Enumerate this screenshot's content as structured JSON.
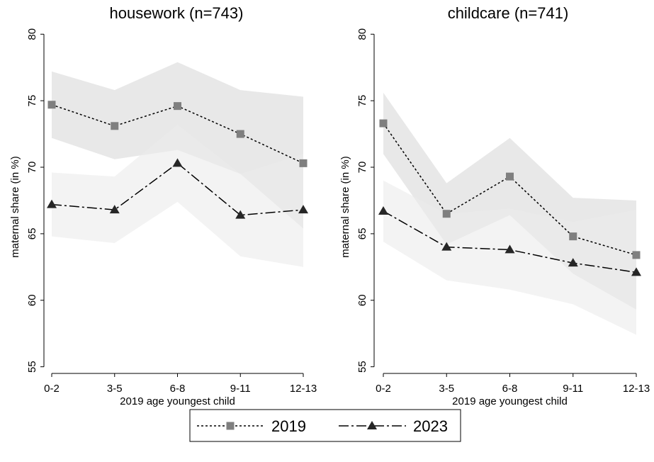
{
  "chart_data": [
    {
      "type": "line",
      "title": "housework (n=743)",
      "xlabel": "2019 age youngest child",
      "ylabel": "maternal share (in %)",
      "categories": [
        "0-2",
        "3-5",
        "6-8",
        "9-11",
        "12-13"
      ],
      "ylim": [
        54.5,
        80.6
      ],
      "yticks": [
        55,
        60,
        65,
        70,
        75,
        80
      ],
      "series": [
        {
          "name": "2019",
          "color": "#7f7f7f",
          "line_color": "#000000",
          "line_style": "dotted",
          "marker": "square",
          "band_color": "#d9d9d9",
          "values": [
            74.7,
            73.1,
            74.6,
            72.5,
            70.3
          ],
          "ci_upper": [
            77.2,
            75.8,
            77.9,
            75.8,
            75.3
          ],
          "ci_lower": [
            72.2,
            70.6,
            71.3,
            69.5,
            65.4
          ]
        },
        {
          "name": "2023",
          "color": "#262626",
          "line_color": "#000000",
          "line_style": "dashdot",
          "marker": "triangle",
          "band_color": "#ebebeb",
          "values": [
            67.2,
            66.8,
            70.3,
            66.4,
            66.8
          ],
          "ci_upper": [
            69.6,
            69.3,
            73.2,
            69.5,
            71.0
          ],
          "ci_lower": [
            64.8,
            64.3,
            67.4,
            63.3,
            62.5
          ]
        }
      ]
    },
    {
      "type": "line",
      "title": "childcare (n=741)",
      "xlabel": "2019 age youngest child",
      "ylabel": "maternal share (in %)",
      "categories": [
        "0-2",
        "3-5",
        "6-8",
        "9-11",
        "12-13"
      ],
      "ylim": [
        54.5,
        80.6
      ],
      "yticks": [
        55,
        60,
        65,
        70,
        75,
        80
      ],
      "series": [
        {
          "color": "#7f7f7f",
          "line_color": "#000000",
          "line_style": "dotted",
          "marker": "square",
          "band_color": "#d9d9d9",
          "values": [
            73.3,
            66.5,
            69.3,
            64.8,
            63.4
          ],
          "ci_upper": [
            75.6,
            68.8,
            72.2,
            67.7,
            67.5
          ],
          "ci_lower": [
            71.0,
            64.2,
            66.4,
            62.0,
            59.3
          ]
        },
        {
          "color": "#262626",
          "line_color": "#000000",
          "line_style": "dashdot",
          "marker": "triangle",
          "band_color": "#ebebeb",
          "values": [
            66.7,
            64.0,
            63.8,
            62.8,
            62.1
          ],
          "ci_upper": [
            69.0,
            66.5,
            66.9,
            65.9,
            66.8
          ],
          "ci_lower": [
            64.4,
            61.5,
            60.8,
            59.7,
            57.4
          ]
        }
      ]
    }
  ]
}
